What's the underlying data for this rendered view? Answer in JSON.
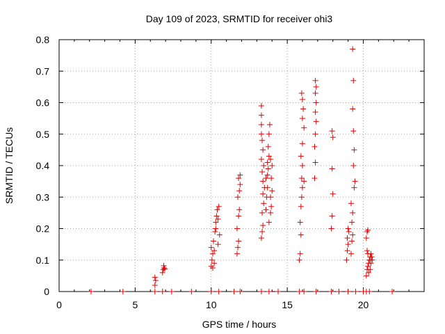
{
  "chart_data": {
    "type": "scatter",
    "title": "Day 109 of 2023, SRMTID for receiver ohi3",
    "xlabel": "GPS time / hours",
    "ylabel": "SRMTID / TECUs",
    "xlim": [
      0,
      24
    ],
    "ylim": [
      0,
      0.8
    ],
    "xticks": [
      0,
      5,
      10,
      15,
      20
    ],
    "xtick_labels": [
      "0",
      "5",
      "10",
      "15",
      "20"
    ],
    "yticks": [
      0,
      0.1,
      0.2,
      0.3,
      0.4,
      0.5,
      0.6,
      0.7,
      0.8
    ],
    "ytick_labels": [
      "0",
      "0.1",
      "0.2",
      "0.3",
      "0.4",
      "0.5",
      "0.6",
      "0.7",
      "0.8"
    ],
    "grid": true,
    "marker": "+",
    "color": "#e00000",
    "series": [
      {
        "name": "SRMTID",
        "points": [
          [
            2.1,
            0
          ],
          [
            4.2,
            0
          ],
          [
            6.3,
            0
          ],
          [
            6.8,
            0
          ],
          [
            7.4,
            0
          ],
          [
            8.7,
            0
          ],
          [
            10.0,
            0
          ],
          [
            10.5,
            0
          ],
          [
            11.5,
            0
          ],
          [
            11.9,
            0
          ],
          [
            13.3,
            0
          ],
          [
            13.8,
            0
          ],
          [
            14.4,
            0
          ],
          [
            15.8,
            0
          ],
          [
            16.1,
            0
          ],
          [
            16.9,
            0
          ],
          [
            17.9,
            0
          ],
          [
            18.4,
            0
          ],
          [
            19.0,
            0
          ],
          [
            19.5,
            0
          ],
          [
            20.0,
            0
          ],
          [
            20.2,
            0
          ],
          [
            20.4,
            0
          ],
          [
            21.9,
            0
          ],
          [
            6.3,
            0.02
          ],
          [
            6.35,
            0.035
          ],
          [
            6.3,
            0.045
          ],
          [
            6.8,
            0.06
          ],
          [
            6.85,
            0.07
          ],
          [
            6.9,
            0.075
          ],
          [
            6.95,
            0.072
          ],
          [
            6.88,
            0.082
          ],
          [
            10.0,
            0.08
          ],
          [
            10.05,
            0.1
          ],
          [
            10.1,
            0.12
          ],
          [
            10.0,
            0.14
          ],
          [
            10.15,
            0.16
          ],
          [
            10.2,
            0.13
          ],
          [
            10.25,
            0.19
          ],
          [
            10.3,
            0.2
          ],
          [
            10.3,
            0.22
          ],
          [
            10.35,
            0.24
          ],
          [
            10.4,
            0.26
          ],
          [
            10.45,
            0.23
          ],
          [
            10.5,
            0.27
          ],
          [
            10.55,
            0.18
          ],
          [
            10.45,
            0.15
          ],
          [
            10.1,
            0.075
          ],
          [
            10.2,
            0.09
          ],
          [
            11.7,
            0.12
          ],
          [
            11.75,
            0.14
          ],
          [
            11.8,
            0.16
          ],
          [
            11.7,
            0.2
          ],
          [
            11.8,
            0.24
          ],
          [
            11.85,
            0.26
          ],
          [
            11.75,
            0.3
          ],
          [
            11.85,
            0.32
          ],
          [
            11.9,
            0.34
          ],
          [
            11.8,
            0.36
          ],
          [
            11.9,
            0.37
          ],
          [
            13.3,
            0.17
          ],
          [
            13.35,
            0.19
          ],
          [
            13.4,
            0.21
          ],
          [
            13.35,
            0.25
          ],
          [
            13.45,
            0.28
          ],
          [
            13.4,
            0.31
          ],
          [
            13.5,
            0.33
          ],
          [
            13.4,
            0.35
          ],
          [
            13.35,
            0.38
          ],
          [
            13.45,
            0.4
          ],
          [
            13.3,
            0.42
          ],
          [
            13.4,
            0.45
          ],
          [
            13.35,
            0.48
          ],
          [
            13.3,
            0.5
          ],
          [
            13.3,
            0.53
          ],
          [
            13.3,
            0.56
          ],
          [
            13.3,
            0.59
          ],
          [
            13.6,
            0.26
          ],
          [
            13.65,
            0.3
          ],
          [
            13.7,
            0.33
          ],
          [
            13.6,
            0.36
          ],
          [
            13.75,
            0.39
          ],
          [
            13.7,
            0.41
          ],
          [
            13.8,
            0.43
          ],
          [
            13.75,
            0.46
          ],
          [
            13.8,
            0.5
          ],
          [
            13.85,
            0.53
          ],
          [
            13.7,
            0.37
          ],
          [
            13.8,
            0.22
          ],
          [
            13.9,
            0.25
          ],
          [
            13.95,
            0.27
          ],
          [
            13.9,
            0.3
          ],
          [
            14.0,
            0.32
          ],
          [
            13.95,
            0.36
          ],
          [
            14.0,
            0.4
          ],
          [
            13.9,
            0.42
          ],
          [
            15.8,
            0.1
          ],
          [
            15.85,
            0.12
          ],
          [
            15.9,
            0.18
          ],
          [
            15.85,
            0.22
          ],
          [
            15.9,
            0.27
          ],
          [
            15.95,
            0.3
          ],
          [
            16.0,
            0.33
          ],
          [
            15.95,
            0.36
          ],
          [
            16.0,
            0.4
          ],
          [
            15.9,
            0.43
          ],
          [
            16.0,
            0.47
          ],
          [
            16.1,
            0.52
          ],
          [
            16.0,
            0.55
          ],
          [
            16.05,
            0.58
          ],
          [
            16.0,
            0.61
          ],
          [
            15.95,
            0.63
          ],
          [
            16.1,
            0.35
          ],
          [
            16.8,
            0.36
          ],
          [
            16.85,
            0.41
          ],
          [
            16.8,
            0.46
          ],
          [
            16.85,
            0.5
          ],
          [
            16.9,
            0.54
          ],
          [
            16.85,
            0.57
          ],
          [
            16.9,
            0.6
          ],
          [
            16.85,
            0.63
          ],
          [
            16.9,
            0.65
          ],
          [
            16.85,
            0.67
          ],
          [
            17.9,
            0.2
          ],
          [
            17.95,
            0.24
          ],
          [
            18.0,
            0.31
          ],
          [
            17.95,
            0.39
          ],
          [
            18.0,
            0.49
          ],
          [
            17.95,
            0.51
          ],
          [
            18.9,
            0.1
          ],
          [
            18.95,
            0.13
          ],
          [
            19.0,
            0.15
          ],
          [
            18.95,
            0.17
          ],
          [
            19.05,
            0.19
          ],
          [
            19.0,
            0.2
          ],
          [
            19.2,
            0.12
          ],
          [
            19.25,
            0.16
          ],
          [
            19.3,
            0.18
          ],
          [
            19.25,
            0.22
          ],
          [
            19.3,
            0.25
          ],
          [
            19.2,
            0.28
          ],
          [
            19.4,
            0.33
          ],
          [
            19.45,
            0.35
          ],
          [
            19.35,
            0.4
          ],
          [
            19.4,
            0.45
          ],
          [
            19.35,
            0.51
          ],
          [
            19.3,
            0.58
          ],
          [
            19.35,
            0.67
          ],
          [
            19.3,
            0.77
          ],
          [
            20.2,
            0.05
          ],
          [
            20.25,
            0.07
          ],
          [
            20.3,
            0.08
          ],
          [
            20.35,
            0.09
          ],
          [
            20.4,
            0.1
          ],
          [
            20.45,
            0.11
          ],
          [
            20.3,
            0.12
          ],
          [
            20.25,
            0.13
          ],
          [
            20.4,
            0.1
          ],
          [
            20.5,
            0.09
          ],
          [
            20.55,
            0.11
          ],
          [
            20.6,
            0.1
          ],
          [
            20.5,
            0.12
          ],
          [
            20.35,
            0.06
          ],
          [
            20.45,
            0.07
          ],
          [
            20.2,
            0.17
          ],
          [
            20.25,
            0.19
          ],
          [
            20.3,
            0.195
          ]
        ]
      }
    ]
  }
}
